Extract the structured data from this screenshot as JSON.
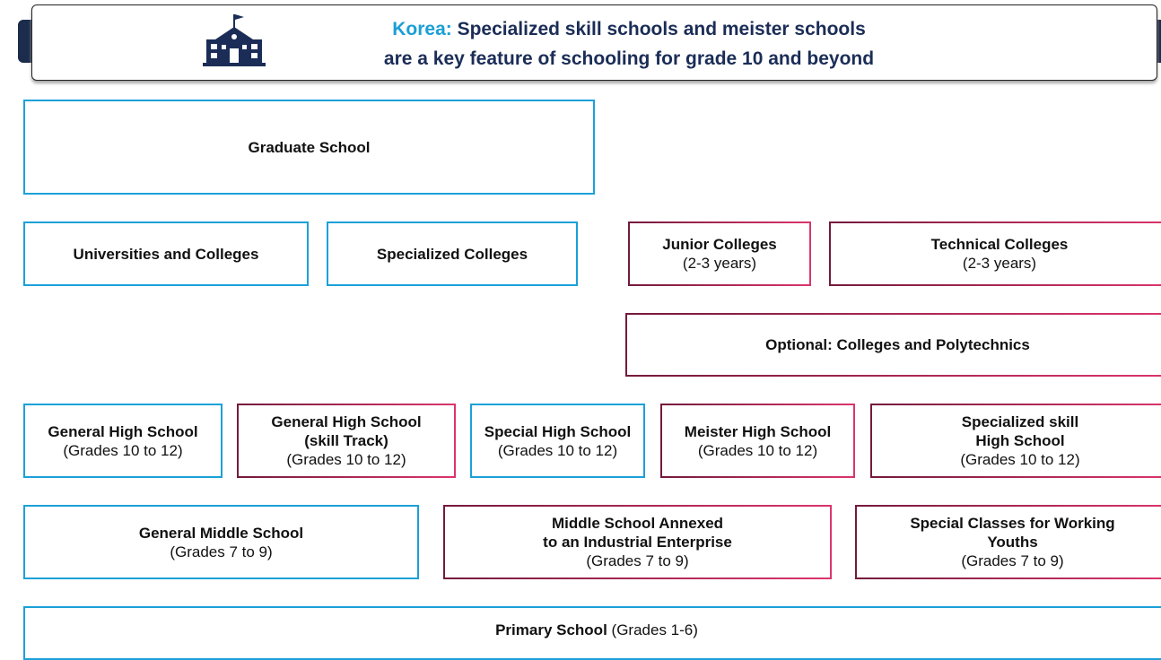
{
  "header": {
    "highlight": "Korea:",
    "line1": "Specialized skill schools and meister schools",
    "line2": "are a key feature of schooling for grade 10 and beyond"
  },
  "nodes": [
    {
      "bold": [
        "Graduate School"
      ]
    },
    {
      "bold": [
        "Universities and Colleges"
      ]
    },
    {
      "bold": [
        "Specialized Colleges"
      ]
    },
    {
      "bold": [
        "Junior Colleges"
      ],
      "detail": "(2-3 years)"
    },
    {
      "bold": [
        "Technical Colleges"
      ],
      "detail": "(2-3 years)"
    },
    {
      "bold": [
        "Optional: Colleges and Polytechnics"
      ]
    },
    {
      "bold": [
        "General High School"
      ],
      "detail": "(Grades 10 to 12)"
    },
    {
      "bold": [
        "General High School",
        "(skill Track)"
      ],
      "detail": "(Grades 10 to 12)"
    },
    {
      "bold": [
        "Special High School"
      ],
      "detail": "(Grades 10 to 12)"
    },
    {
      "bold": [
        "Meister High School"
      ],
      "detail": "(Grades 10 to 12)"
    },
    {
      "bold": [
        "Specialized skill",
        "High School"
      ],
      "detail": "(Grades 10 to 12)"
    },
    {
      "bold": [
        "General Middle School"
      ],
      "detail": "(Grades 7 to 9)"
    },
    {
      "bold": [
        "Middle School Annexed",
        "to an Industrial Enterprise"
      ],
      "detail": "(Grades 7 to 9)"
    },
    {
      "bold": [
        "Special Classes for Working",
        "Youths"
      ],
      "detail": "(Grades 7 to 9)"
    },
    {
      "bold": [
        "Primary School"
      ],
      "detail": "(Grades 1-6)"
    }
  ]
}
